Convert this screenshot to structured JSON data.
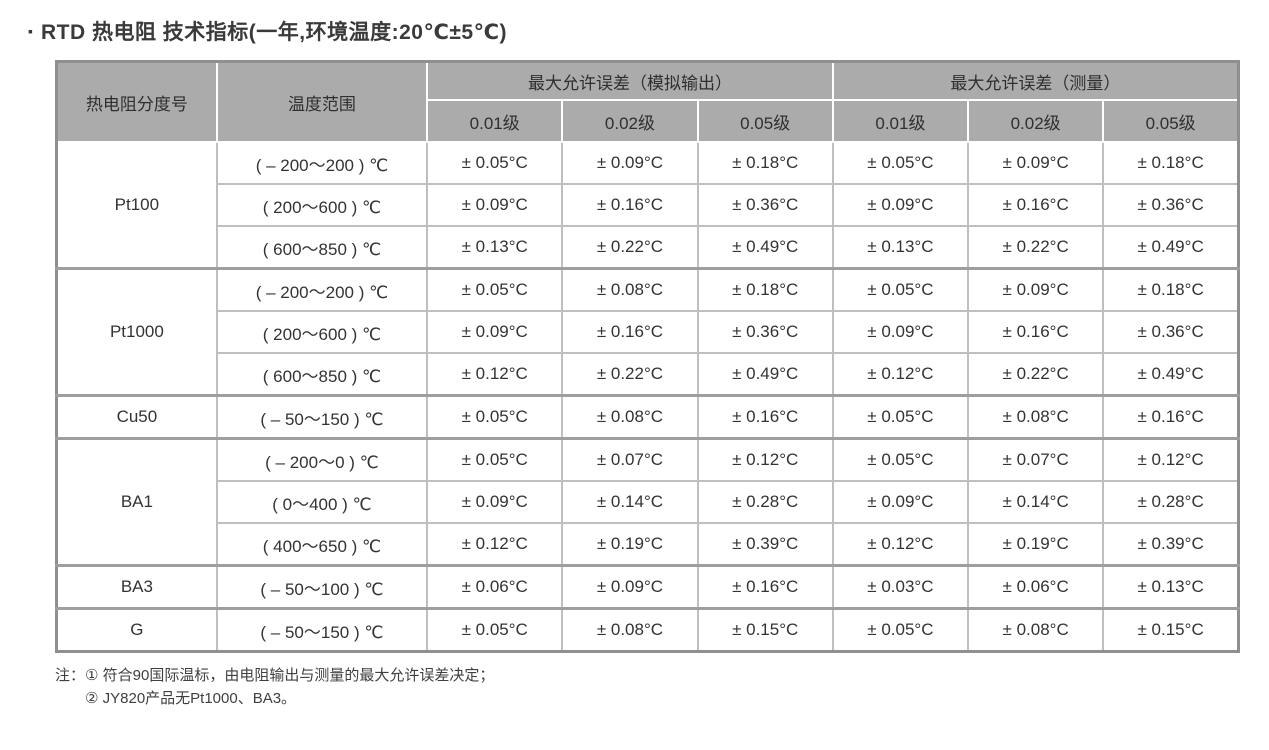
{
  "title": {
    "bullet": "▪",
    "text": "RTD 热电阻 技术指标(一年,环境温度:20℃±5℃)"
  },
  "colors": {
    "header_bg": "#ababab",
    "outer_border": "#8f8f8f",
    "cell_border": "#bfbfbf",
    "group_border": "#9e9e9e",
    "text": "#333333"
  },
  "table": {
    "header": {
      "col_index": "热电阻分度号",
      "col_range": "温度范围",
      "group_analog": "最大允许误差（模拟输出）",
      "group_measure": "最大允许误差（测量）",
      "sub_analog": [
        "0.01级",
        "0.02级",
        "0.05级"
      ],
      "sub_measure": [
        "0.01级",
        "0.02级",
        "0.05级"
      ]
    },
    "groups": [
      {
        "name": "Pt100",
        "rows": [
          {
            "range": "( – 200～200 ) ℃",
            "analog": [
              "± 0.05°C",
              "± 0.09°C",
              "± 0.18°C"
            ],
            "measure": [
              "± 0.05°C",
              "± 0.09°C",
              "± 0.18°C"
            ]
          },
          {
            "range": "( 200～600 ) ℃",
            "analog": [
              "± 0.09°C",
              "± 0.16°C",
              "± 0.36°C"
            ],
            "measure": [
              "± 0.09°C",
              "± 0.16°C",
              "± 0.36°C"
            ]
          },
          {
            "range": "( 600～850 ) ℃",
            "analog": [
              "± 0.13°C",
              "± 0.22°C",
              "± 0.49°C"
            ],
            "measure": [
              "± 0.13°C",
              "± 0.22°C",
              "± 0.49°C"
            ]
          }
        ]
      },
      {
        "name": "Pt1000",
        "rows": [
          {
            "range": "( – 200～200 ) ℃",
            "analog": [
              "± 0.05°C",
              "± 0.08°C",
              "± 0.18°C"
            ],
            "measure": [
              "± 0.05°C",
              "± 0.09°C",
              "± 0.18°C"
            ]
          },
          {
            "range": "( 200～600 ) ℃",
            "analog": [
              "± 0.09°C",
              "± 0.16°C",
              "± 0.36°C"
            ],
            "measure": [
              "± 0.09°C",
              "± 0.16°C",
              "± 0.36°C"
            ]
          },
          {
            "range": "( 600～850 ) ℃",
            "analog": [
              "± 0.12°C",
              "± 0.22°C",
              "± 0.49°C"
            ],
            "measure": [
              "± 0.12°C",
              "± 0.22°C",
              "± 0.49°C"
            ]
          }
        ]
      },
      {
        "name": "Cu50",
        "rows": [
          {
            "range": "( – 50～150 ) ℃",
            "analog": [
              "± 0.05°C",
              "± 0.08°C",
              "± 0.16°C"
            ],
            "measure": [
              "± 0.05°C",
              "± 0.08°C",
              "± 0.16°C"
            ]
          }
        ]
      },
      {
        "name": "BA1",
        "rows": [
          {
            "range": "( – 200～0 ) ℃",
            "analog": [
              "± 0.05°C",
              "± 0.07°C",
              "± 0.12°C"
            ],
            "measure": [
              "± 0.05°C",
              "± 0.07°C",
              "± 0.12°C"
            ]
          },
          {
            "range": "( 0～400 ) ℃",
            "analog": [
              "± 0.09°C",
              "± 0.14°C",
              "± 0.28°C"
            ],
            "measure": [
              "± 0.09°C",
              "± 0.14°C",
              "± 0.28°C"
            ]
          },
          {
            "range": "( 400～650 ) ℃",
            "analog": [
              "± 0.12°C",
              "± 0.19°C",
              "± 0.39°C"
            ],
            "measure": [
              "± 0.12°C",
              "± 0.19°C",
              "± 0.39°C"
            ]
          }
        ]
      },
      {
        "name": "BA3",
        "rows": [
          {
            "range": "( – 50～100 ) ℃",
            "analog": [
              "± 0.06°C",
              "± 0.09°C",
              "± 0.16°C"
            ],
            "measure": [
              "± 0.03°C",
              "± 0.06°C",
              "± 0.13°C"
            ]
          }
        ]
      },
      {
        "name": "G",
        "rows": [
          {
            "range": "( – 50～150 ) ℃",
            "analog": [
              "± 0.05°C",
              "± 0.08°C",
              "± 0.15°C"
            ],
            "measure": [
              "± 0.05°C",
              "± 0.08°C",
              "± 0.15°C"
            ]
          }
        ]
      }
    ]
  },
  "notes": {
    "label": "注：",
    "items": [
      "① 符合90国际温标，由电阻输出与测量的最大允许误差决定；",
      "② JY820产品无Pt1000、BA3。"
    ]
  }
}
